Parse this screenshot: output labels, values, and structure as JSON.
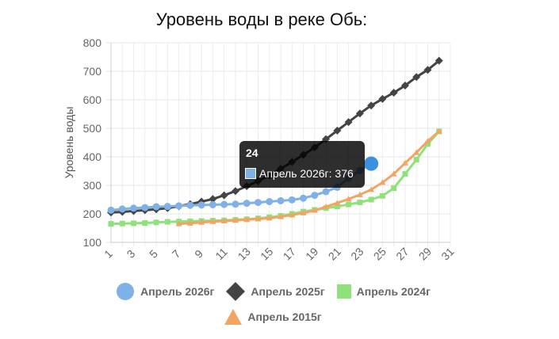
{
  "chart_data": {
    "type": "line",
    "title": "Уровень воды в реке Обь:",
    "xlabel": "",
    "ylabel": "Уровень воды",
    "ylim": [
      100,
      800
    ],
    "yticks": [
      100,
      200,
      300,
      400,
      500,
      600,
      700,
      800
    ],
    "xlim": [
      1,
      31
    ],
    "xticks": [
      1,
      3,
      5,
      7,
      9,
      11,
      13,
      15,
      17,
      19,
      21,
      23,
      25,
      27,
      29,
      31
    ],
    "grid": true,
    "legend_position": "bottom",
    "series": [
      {
        "name": "Апрель 2026г",
        "color": "#7fb0e6",
        "marker": "circle",
        "x": [
          1,
          2,
          3,
          4,
          5,
          6,
          7,
          8,
          9,
          10,
          11,
          12,
          13,
          14,
          15,
          16,
          17,
          18,
          19,
          20,
          21,
          22,
          23,
          24
        ],
        "values": [
          213,
          217,
          220,
          222,
          225,
          226,
          228,
          230,
          231,
          232,
          233,
          234,
          237,
          240,
          243,
          246,
          249,
          255,
          265,
          278,
          293,
          325,
          352,
          376
        ]
      },
      {
        "name": "Апрель 2025г",
        "color": "#444444",
        "marker": "diamond",
        "x": [
          1,
          2,
          3,
          4,
          5,
          6,
          7,
          8,
          9,
          10,
          11,
          12,
          13,
          14,
          15,
          16,
          17,
          18,
          19,
          20,
          21,
          22,
          23,
          24,
          25,
          26,
          27,
          28,
          29,
          30
        ],
        "values": [
          205,
          207,
          210,
          213,
          216,
          220,
          227,
          234,
          243,
          252,
          265,
          280,
          297,
          315,
          335,
          358,
          382,
          407,
          433,
          462,
          492,
          522,
          552,
          580,
          603,
          625,
          650,
          680,
          705,
          737
        ]
      },
      {
        "name": "Апрель 2024г",
        "color": "#90e07c",
        "marker": "square",
        "x": [
          1,
          2,
          3,
          4,
          5,
          6,
          7,
          8,
          9,
          10,
          11,
          12,
          13,
          14,
          15,
          16,
          17,
          18,
          19,
          20,
          21,
          22,
          23,
          24,
          25,
          26,
          27,
          28,
          29,
          30
        ],
        "values": [
          165,
          166,
          167,
          168,
          170,
          172,
          173,
          174,
          175,
          176,
          177,
          179,
          181,
          184,
          188,
          193,
          200,
          208,
          214,
          220,
          226,
          233,
          240,
          250,
          263,
          290,
          340,
          390,
          445,
          489
        ]
      },
      {
        "name": "Апрель 2015г",
        "color": "#f0a466",
        "marker": "triangle",
        "x": [
          7,
          8,
          9,
          10,
          11,
          12,
          13,
          14,
          15,
          16,
          17,
          18,
          19,
          20,
          21,
          22,
          23,
          24,
          25,
          26,
          27,
          28,
          29,
          30
        ],
        "values": [
          165,
          167,
          170,
          173,
          175,
          177,
          180,
          182,
          185,
          190,
          196,
          203,
          212,
          225,
          238,
          252,
          267,
          285,
          310,
          340,
          378,
          415,
          455,
          490
        ]
      }
    ],
    "tooltip": {
      "title": "24",
      "body": "Апрель 2026г: 376",
      "series_index": 0,
      "point_x": 24
    }
  }
}
